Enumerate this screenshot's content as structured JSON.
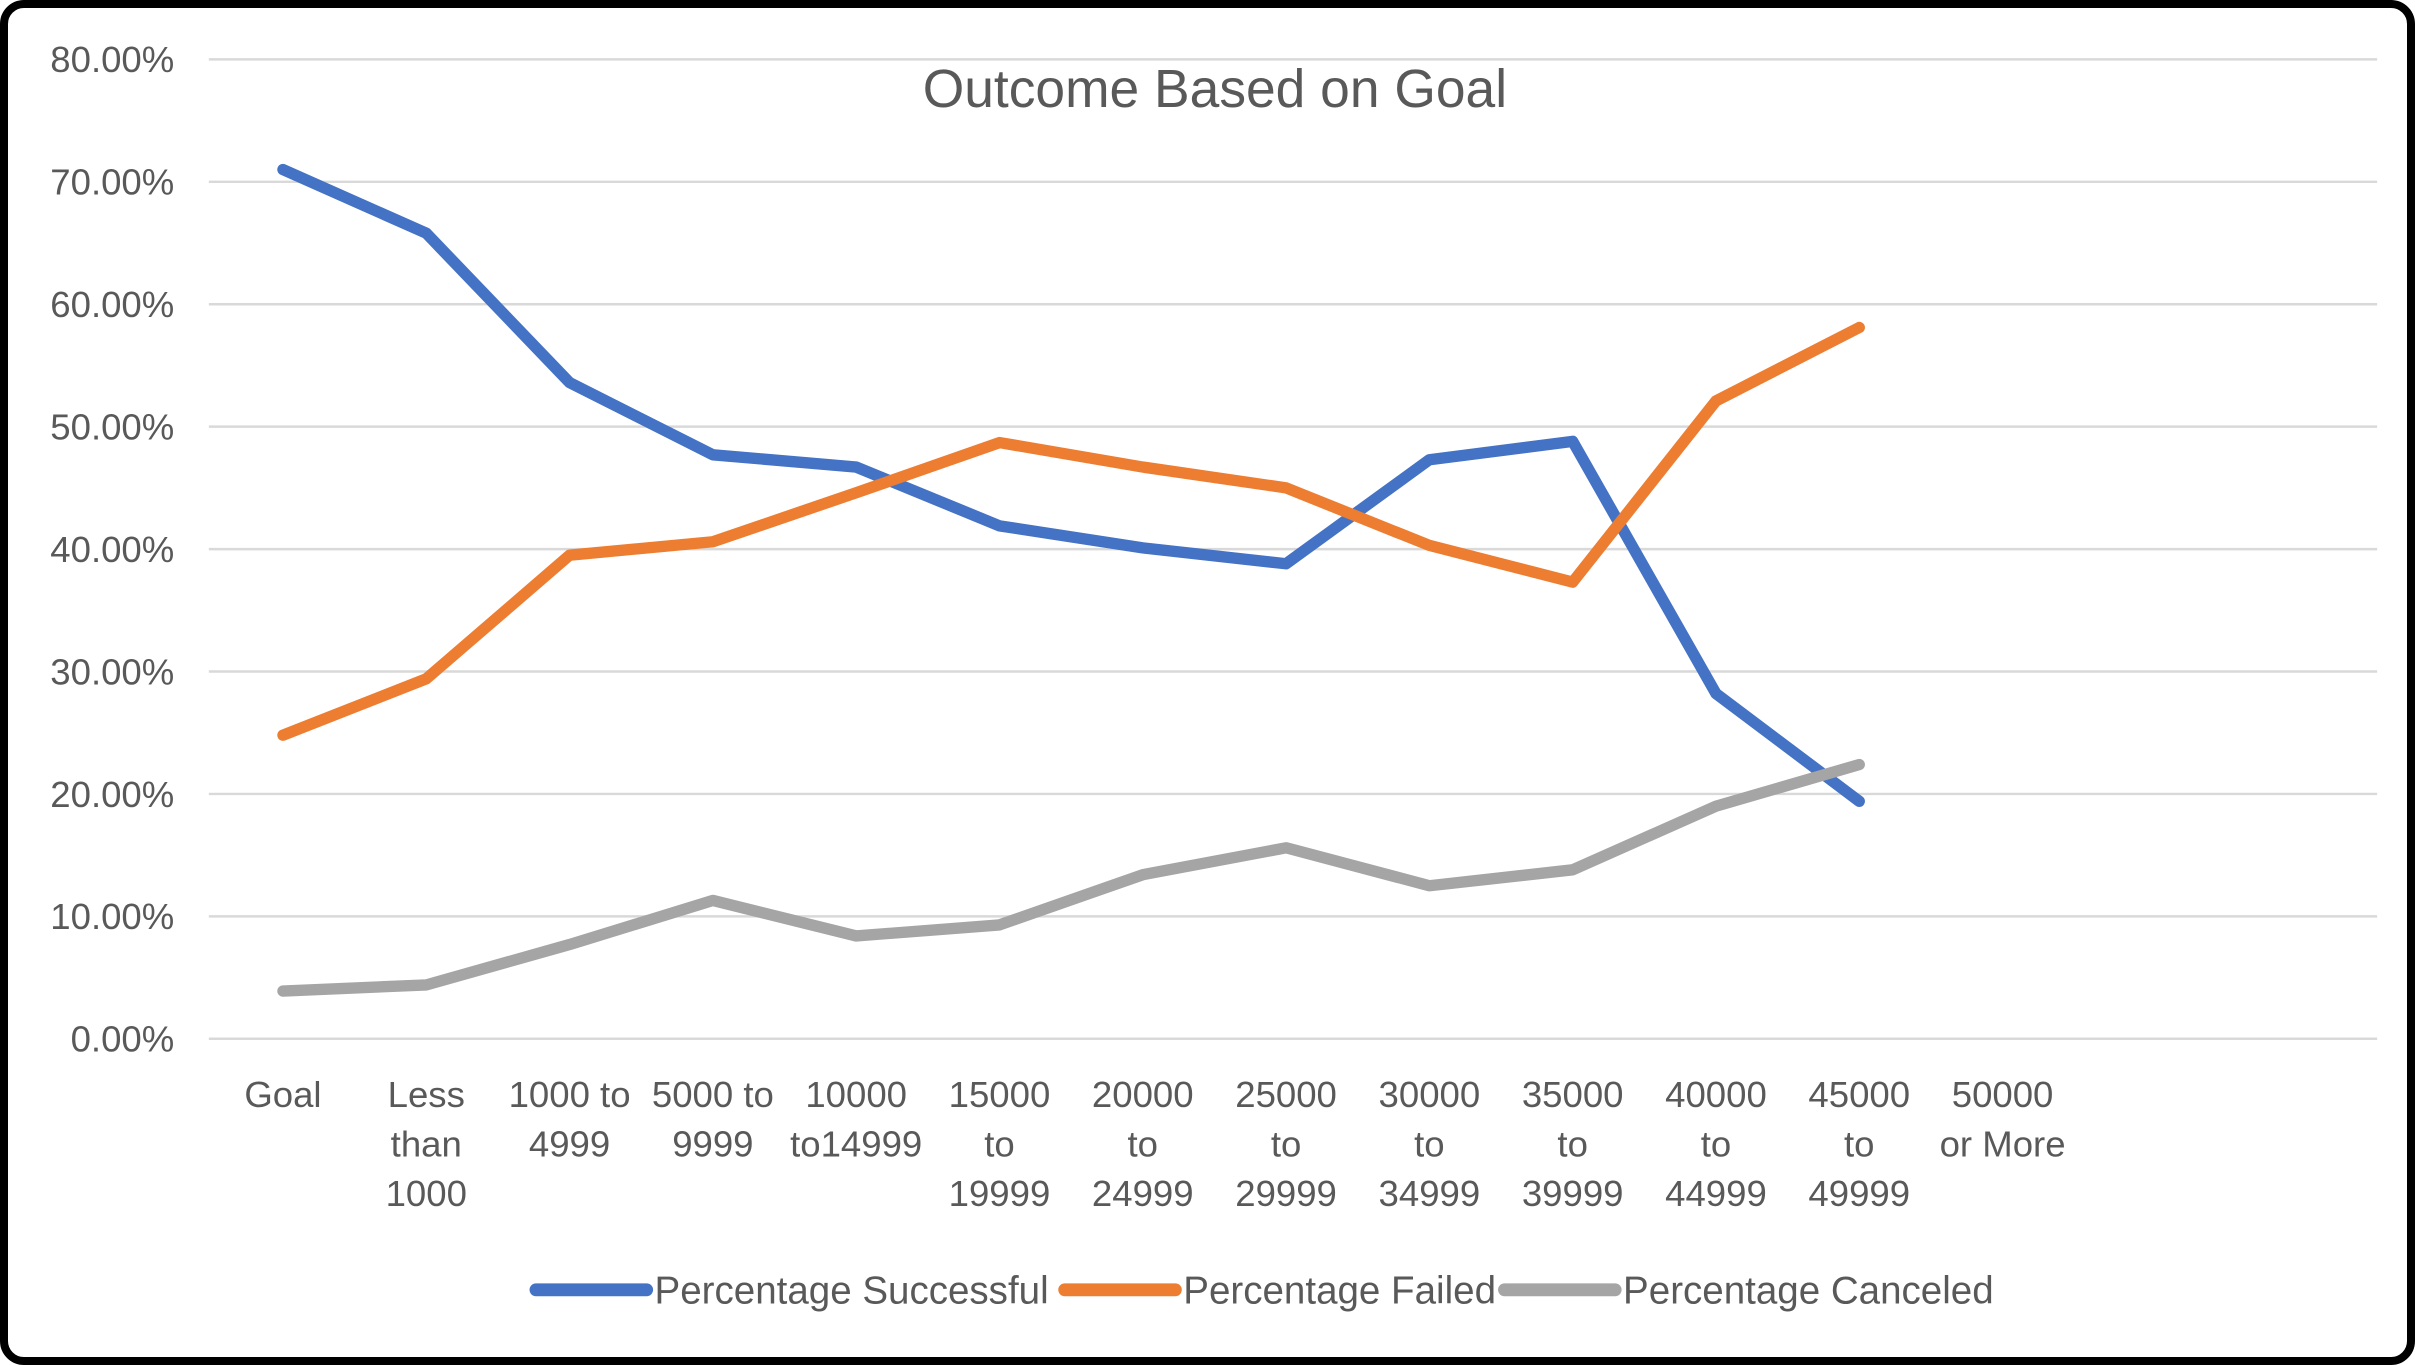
{
  "chart_data": {
    "type": "line",
    "title": "Outcome Based on Goal",
    "xlabel": "",
    "ylabel": "",
    "categories": [
      "Goal",
      "Less than 1000",
      "1000 to 4999",
      "5000 to 9999",
      "10000 to14999",
      "15000 to 19999",
      "20000 to 24999",
      "25000 to 29999",
      "30000 to 34999",
      "35000 to 39999",
      "40000 to 44999",
      "45000 to 49999",
      "50000 or More"
    ],
    "category_label_lines": [
      [
        "Goal"
      ],
      [
        "Less",
        "than",
        "1000"
      ],
      [
        "1000 to",
        "4999"
      ],
      [
        "5000 to",
        "9999"
      ],
      [
        "10000",
        "to14999"
      ],
      [
        "15000",
        "to",
        "19999"
      ],
      [
        "20000",
        "to",
        "24999"
      ],
      [
        "25000",
        "to",
        "29999"
      ],
      [
        "30000",
        "to",
        "34999"
      ],
      [
        "35000",
        "to",
        "39999"
      ],
      [
        "40000",
        "to",
        "44999"
      ],
      [
        "45000",
        "to",
        "49999"
      ],
      [
        "50000",
        "or More"
      ]
    ],
    "series": [
      {
        "name": "Percentage Successful",
        "color": "#4472C4",
        "values": [
          71.0,
          65.8,
          53.6,
          47.7,
          46.7,
          41.9,
          40.1,
          38.8,
          47.3,
          48.8,
          28.2,
          19.4,
          null
        ]
      },
      {
        "name": "Percentage Failed",
        "color": "#ED7D31",
        "values": [
          24.8,
          29.4,
          39.5,
          40.6,
          44.6,
          48.7,
          46.7,
          45.0,
          40.3,
          37.3,
          52.1,
          58.1,
          null
        ]
      },
      {
        "name": "Percentage Canceled",
        "color": "#A5A5A5",
        "values": [
          3.9,
          4.4,
          7.7,
          11.3,
          8.4,
          9.3,
          13.4,
          15.6,
          12.5,
          13.8,
          19.0,
          22.4,
          null
        ]
      }
    ],
    "y_axis": {
      "min": 0,
      "max": 80,
      "step": 10,
      "tick_labels": [
        "0.00%",
        "10.00%",
        "20.00%",
        "30.00%",
        "40.00%",
        "50.00%",
        "60.00%",
        "70.00%",
        "80.00%"
      ]
    },
    "grid": "horizontal",
    "gridline_color": "#D9D9D9",
    "text_color": "#595959",
    "legend_position": "bottom"
  }
}
